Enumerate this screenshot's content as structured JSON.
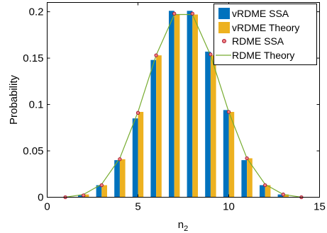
{
  "chart_data": {
    "type": "bar",
    "xlabel": "n",
    "xlabel_subscript": "2",
    "ylabel": "Probability",
    "xlim": [
      0,
      15
    ],
    "ylim": [
      0,
      0.21
    ],
    "grid": false,
    "legend_position": "top-right",
    "x_ticks": [
      {
        "value": 0,
        "label": "0"
      },
      {
        "value": 5,
        "label": "5"
      },
      {
        "value": 10,
        "label": "10"
      },
      {
        "value": 15,
        "label": "15"
      }
    ],
    "y_ticks": [
      {
        "value": 0,
        "label": "0"
      },
      {
        "value": 0.05,
        "label": "0.05"
      },
      {
        "value": 0.1,
        "label": "0.1"
      },
      {
        "value": 0.15,
        "label": "0.15"
      },
      {
        "value": 0.2,
        "label": "0.2"
      }
    ],
    "x": [
      1,
      2,
      3,
      4,
      5,
      6,
      7,
      8,
      9,
      10,
      11,
      12,
      13,
      14
    ],
    "series": [
      {
        "name": "vRDME SSA",
        "kind": "bar",
        "color": "#0072BD",
        "values": [
          0.0,
          0.002,
          0.013,
          0.04,
          0.085,
          0.148,
          0.201,
          0.201,
          0.157,
          0.094,
          0.04,
          0.013,
          0.003,
          0.0
        ]
      },
      {
        "name": "vRDME Theory",
        "kind": "bar",
        "color": "#EDB120",
        "values": [
          0.0,
          0.003,
          0.013,
          0.041,
          0.092,
          0.153,
          0.197,
          0.197,
          0.153,
          0.092,
          0.042,
          0.013,
          0.003,
          0.0
        ]
      },
      {
        "name": "RDME SSA",
        "kind": "marker",
        "color": "#A2142F",
        "values": [
          0.0,
          0.002,
          0.013,
          0.041,
          0.091,
          0.153,
          0.198,
          0.198,
          0.154,
          0.092,
          0.042,
          0.013,
          0.003,
          0.0
        ]
      },
      {
        "name": "RDME Theory",
        "kind": "line",
        "color": "#77AC30",
        "values": [
          0.0,
          0.003,
          0.014,
          0.042,
          0.092,
          0.153,
          0.197,
          0.197,
          0.153,
          0.092,
          0.042,
          0.014,
          0.003,
          0.0
        ]
      }
    ]
  }
}
